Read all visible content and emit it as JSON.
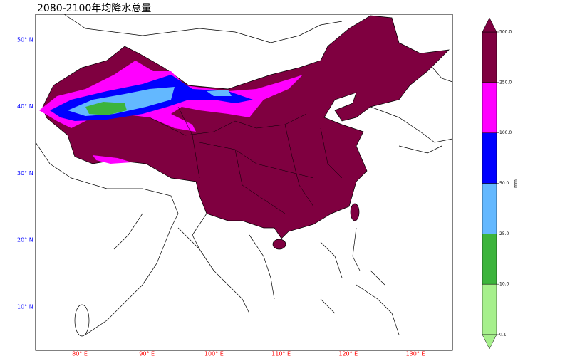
{
  "map": {
    "title": "2080-2100年均降水总量",
    "lat_labels": [
      "50° N",
      "40° N",
      "30° N",
      "20° N",
      "10° N"
    ],
    "lon_labels": [
      "80° E",
      "90° E",
      "100° E",
      "110° E",
      "120° E",
      "130° E"
    ],
    "colorbar": {
      "unit": "mm",
      "tick_labels": [
        "0.1",
        "10.0",
        "25.0",
        "50.0",
        "100.0",
        "250.0",
        "500.0"
      ],
      "colors": [
        "#a6f08c",
        "#3cb43c",
        "#63b8ff",
        "#0000ff",
        "#ff00ff",
        "#7f0040"
      ]
    }
  }
}
